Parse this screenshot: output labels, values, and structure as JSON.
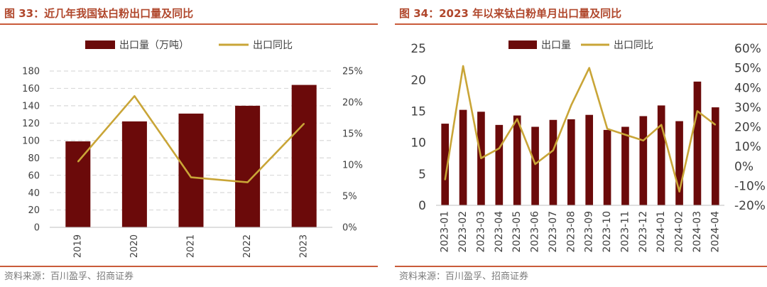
{
  "colors": {
    "bar": "#6b0a0a",
    "line": "#c9a537",
    "grid": "#d9d9d9",
    "title": "#b0472c",
    "rule": "#c95b3a"
  },
  "left": {
    "title": "图 33：近几年我国钛白粉出口量及同比",
    "source": "资料来源：百川盈孚、招商证券"
  },
  "right": {
    "title": "图 34：2023 年以来钛白粉单月出口量及同比",
    "source": "资料来源：百川盈孚、招商证券"
  },
  "chart_data": [
    {
      "type": "bar",
      "categories": [
        "2019",
        "2020",
        "2021",
        "2022",
        "2023"
      ],
      "series": [
        {
          "name": "出口量（万吨）",
          "type": "bar",
          "axis": "left",
          "values": [
            99,
            122,
            131,
            140,
            164
          ]
        },
        {
          "name": "出口同比",
          "type": "line",
          "axis": "right",
          "values": [
            0.105,
            0.21,
            0.08,
            0.072,
            0.166
          ]
        }
      ],
      "y_left": {
        "min": 0,
        "max": 180,
        "ticks": [
          "0",
          "20",
          "40",
          "60",
          "80",
          "100",
          "120",
          "140",
          "160",
          "180"
        ]
      },
      "y_right": {
        "min": 0,
        "max": 0.25,
        "ticks": [
          "0%",
          "5%",
          "10%",
          "15%",
          "20%",
          "25%"
        ]
      },
      "grid": true,
      "legend": "top"
    },
    {
      "type": "bar",
      "categories": [
        "2023-01",
        "2023-02",
        "2023-03",
        "2023-04",
        "2023-05",
        "2023-06",
        "2023-07",
        "2023-08",
        "2023-09",
        "2023-10",
        "2023-11",
        "2023-12",
        "2024-01",
        "2024-02",
        "2024-03",
        "2024-04"
      ],
      "series": [
        {
          "name": "出口量",
          "type": "bar",
          "axis": "left",
          "values": [
            13.0,
            15.2,
            14.9,
            12.8,
            14.3,
            12.5,
            13.6,
            13.7,
            14.4,
            12.0,
            12.5,
            14.2,
            15.9,
            13.4,
            19.7,
            15.6
          ]
        },
        {
          "name": "出口同比",
          "type": "line",
          "axis": "right",
          "values": [
            -0.07,
            0.51,
            0.04,
            0.09,
            0.24,
            0.01,
            0.08,
            0.31,
            0.5,
            0.19,
            0.16,
            0.13,
            0.21,
            -0.13,
            0.28,
            0.21
          ]
        }
      ],
      "y_left": {
        "min": 0,
        "max": 25,
        "ticks": [
          "0",
          "5",
          "10",
          "15",
          "20",
          "25"
        ]
      },
      "y_right": {
        "min": -0.2,
        "max": 0.6,
        "ticks": [
          "-20%",
          "-10%",
          "0%",
          "10%",
          "20%",
          "30%",
          "40%",
          "50%",
          "60%"
        ]
      },
      "grid": false,
      "legend": "top"
    }
  ]
}
